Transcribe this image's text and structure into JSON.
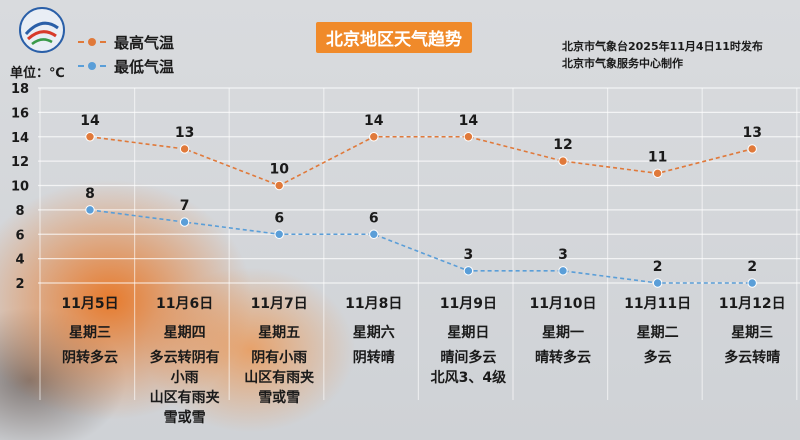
{
  "header": {
    "title": "北京地区天气趋势",
    "publisher_line1": "北京市气象台2025年11月4日11时发布",
    "publisher_line2": "北京市气象服务中心制作",
    "unit_label": "单位：℃"
  },
  "colors": {
    "high": "#e0793a",
    "low": "#5a9ed8",
    "title_bg": "#f08a2a"
  },
  "chart_data": {
    "type": "line",
    "categories": [
      "11月5日",
      "11月6日",
      "11月7日",
      "11月8日",
      "11月9日",
      "11月10日",
      "11月11日",
      "11月12日"
    ],
    "ylim": [
      2,
      18
    ],
    "yticks": [
      2,
      4,
      6,
      8,
      10,
      12,
      14,
      16,
      18
    ],
    "grid": true,
    "legend_position": "top-left",
    "series": [
      {
        "name": "最高气温",
        "values": [
          14,
          13,
          10,
          14,
          14,
          12,
          11,
          13
        ]
      },
      {
        "name": "最低气温",
        "values": [
          8,
          7,
          6,
          6,
          3,
          3,
          2,
          2
        ]
      }
    ]
  },
  "days": [
    {
      "date": "11月5日",
      "weekday": "星期三",
      "weather": [
        "阴转多云"
      ]
    },
    {
      "date": "11月6日",
      "weekday": "星期四",
      "weather": [
        "多云转阴有",
        "小雨",
        "山区有雨夹",
        "雪或雪"
      ]
    },
    {
      "date": "11月7日",
      "weekday": "星期五",
      "weather": [
        "阴有小雨",
        "山区有雨夹",
        "雪或雪"
      ]
    },
    {
      "date": "11月8日",
      "weekday": "星期六",
      "weather": [
        "阴转晴"
      ]
    },
    {
      "date": "11月9日",
      "weekday": "星期日",
      "weather": [
        "晴间多云",
        "北风3、4级"
      ]
    },
    {
      "date": "11月10日",
      "weekday": "星期一",
      "weather": [
        "晴转多云"
      ]
    },
    {
      "date": "11月11日",
      "weekday": "星期二",
      "weather": [
        "多云"
      ]
    },
    {
      "date": "11月12日",
      "weekday": "星期三",
      "weather": [
        "多云转晴"
      ]
    }
  ]
}
